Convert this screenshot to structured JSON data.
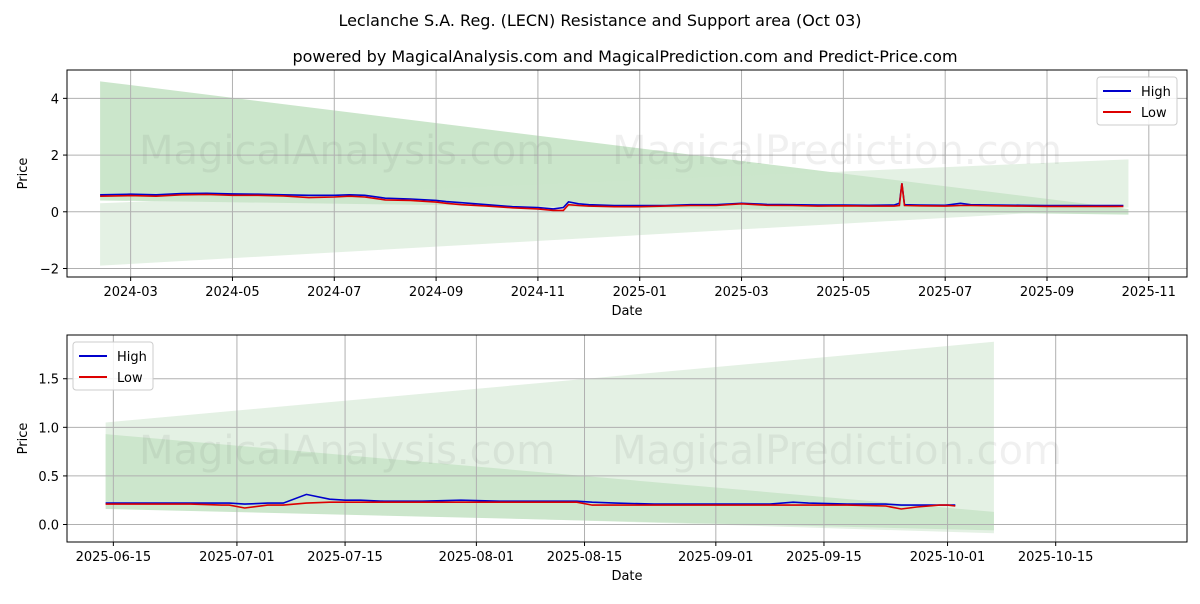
{
  "title": "Leclanche S.A. Reg. (LECN) Resistance and Support area (Oct 03)",
  "subtitle": "powered by MagicalAnalysis.com and MagicalPrediction.com and Predict-Price.com",
  "watermarks": [
    "MagicalAnalysis.com",
    "MagicalPrediction.com"
  ],
  "colors": {
    "high": "#0000cc",
    "low": "#dd0000",
    "band_dark": "#8cc88c",
    "band_light": "#cde6cd",
    "grid": "#b0b0b0"
  },
  "chart_data": [
    {
      "type": "line",
      "name": "full-range",
      "xlabel": "Date",
      "ylabel": "Price",
      "x_ticks": [
        "2024-03",
        "2024-05",
        "2024-07",
        "2024-09",
        "2024-11",
        "2025-01",
        "2025-03",
        "2025-05",
        "2025-07",
        "2025-09",
        "2025-11"
      ],
      "x_tick_pos": [
        0,
        2,
        4,
        6,
        8,
        10,
        12,
        14,
        16,
        18,
        20
      ],
      "xlim": [
        -1.25,
        20.75
      ],
      "ylim": [
        -2.3,
        5.0
      ],
      "y_ticks": [
        -2,
        0,
        2,
        4
      ],
      "legend": [
        "High",
        "Low"
      ],
      "legend_loc": "upper right",
      "x": [
        -0.6,
        0,
        0.5,
        1,
        1.5,
        2,
        2.5,
        3,
        3.5,
        4,
        4.3,
        4.6,
        5,
        5.5,
        6,
        6.2,
        6.5,
        7,
        7.5,
        8,
        8.3,
        8.5,
        8.6,
        8.8,
        9,
        9.5,
        10,
        10.5,
        11,
        11.5,
        12,
        12.5,
        13,
        13.5,
        14,
        14.5,
        15,
        15.1,
        15.15,
        15.2,
        15.5,
        16,
        16.3,
        16.5,
        17,
        17.5,
        18,
        18.5,
        19,
        19.5
      ],
      "series": [
        {
          "name": "High",
          "values": [
            0.6,
            0.62,
            0.6,
            0.64,
            0.65,
            0.63,
            0.62,
            0.6,
            0.58,
            0.58,
            0.6,
            0.58,
            0.48,
            0.45,
            0.4,
            0.36,
            0.32,
            0.25,
            0.18,
            0.15,
            0.1,
            0.15,
            0.35,
            0.28,
            0.25,
            0.22,
            0.22,
            0.22,
            0.25,
            0.25,
            0.3,
            0.26,
            0.25,
            0.24,
            0.24,
            0.23,
            0.24,
            0.3,
            1.0,
            0.25,
            0.24,
            0.23,
            0.3,
            0.25,
            0.24,
            0.23,
            0.22,
            0.22,
            0.22,
            0.22
          ]
        },
        {
          "name": "Low",
          "values": [
            0.55,
            0.57,
            0.55,
            0.6,
            0.61,
            0.58,
            0.58,
            0.56,
            0.5,
            0.52,
            0.55,
            0.52,
            0.42,
            0.4,
            0.34,
            0.3,
            0.25,
            0.2,
            0.14,
            0.1,
            0.05,
            0.05,
            0.25,
            0.22,
            0.2,
            0.18,
            0.18,
            0.2,
            0.22,
            0.22,
            0.28,
            0.23,
            0.22,
            0.2,
            0.21,
            0.2,
            0.2,
            0.22,
            1.0,
            0.22,
            0.21,
            0.2,
            0.22,
            0.22,
            0.21,
            0.2,
            0.19,
            0.19,
            0.19,
            0.19
          ]
        }
      ],
      "bands": [
        {
          "name": "resistance-band",
          "color": "dark",
          "x": [
            -0.6,
            19.6
          ],
          "top": [
            4.6,
            0.1
          ],
          "bottom": [
            0.4,
            -0.1
          ]
        },
        {
          "name": "support-band",
          "color": "light",
          "x": [
            -0.6,
            19.6
          ],
          "top": [
            0.3,
            1.85
          ],
          "bottom": [
            -1.9,
            0.15
          ]
        }
      ]
    },
    {
      "type": "line",
      "name": "zoom",
      "xlabel": "Date",
      "ylabel": "Price",
      "x_ticks": [
        "2025-06-15",
        "2025-07-01",
        "2025-07-15",
        "2025-08-01",
        "2025-08-15",
        "2025-09-01",
        "2025-09-15",
        "2025-10-01",
        "2025-10-15"
      ],
      "x_tick_pos": [
        0,
        16,
        30,
        47,
        61,
        78,
        92,
        108,
        122
      ],
      "xlim": [
        -6,
        139
      ],
      "ylim": [
        -0.18,
        1.95
      ],
      "y_ticks": [
        0.0,
        0.5,
        1.0,
        1.5
      ],
      "y_tick_labels": [
        "0.0",
        "0.5",
        "1.0",
        "1.5"
      ],
      "legend": [
        "High",
        "Low"
      ],
      "legend_loc": "upper left",
      "x": [
        -1,
        5,
        10,
        14,
        15,
        17,
        20,
        22,
        25,
        28,
        30,
        32,
        35,
        40,
        45,
        50,
        55,
        60,
        62,
        65,
        70,
        75,
        80,
        85,
        88,
        90,
        95,
        100,
        102,
        104,
        107,
        108,
        109
      ],
      "series": [
        {
          "name": "High",
          "values": [
            0.22,
            0.22,
            0.22,
            0.22,
            0.22,
            0.21,
            0.22,
            0.22,
            0.31,
            0.26,
            0.25,
            0.25,
            0.24,
            0.24,
            0.25,
            0.24,
            0.24,
            0.24,
            0.23,
            0.22,
            0.21,
            0.21,
            0.21,
            0.21,
            0.23,
            0.22,
            0.21,
            0.21,
            0.2,
            0.2,
            0.2,
            0.2,
            0.2
          ]
        },
        {
          "name": "Low",
          "values": [
            0.21,
            0.21,
            0.21,
            0.2,
            0.2,
            0.17,
            0.2,
            0.2,
            0.22,
            0.23,
            0.23,
            0.23,
            0.23,
            0.23,
            0.23,
            0.23,
            0.23,
            0.23,
            0.2,
            0.2,
            0.2,
            0.2,
            0.2,
            0.2,
            0.2,
            0.2,
            0.2,
            0.19,
            0.16,
            0.18,
            0.2,
            0.2,
            0.19
          ]
        }
      ],
      "bands": [
        {
          "name": "resistance-band",
          "color": "dark",
          "x": [
            -1,
            114
          ],
          "top": [
            0.93,
            0.13
          ],
          "bottom": [
            0.16,
            -0.06
          ]
        },
        {
          "name": "support-band",
          "color": "light",
          "x": [
            -1,
            114
          ],
          "top": [
            1.05,
            1.88
          ],
          "bottom": [
            0.19,
            -0.09
          ]
        }
      ]
    }
  ]
}
